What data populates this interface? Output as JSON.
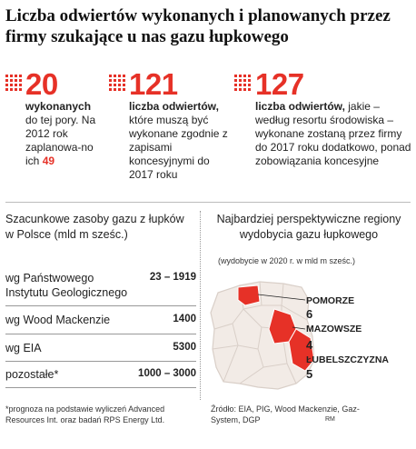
{
  "title": "Liczba odwiertów wykonanych i planowanych przez firmy szukające u nas gazu łupkowego",
  "stats": [
    {
      "number": "20",
      "bold": "wykonanych",
      "text": "do tej pory. Na 2012 rok zaplanowa-no ich",
      "extra": "49"
    },
    {
      "number": "121",
      "bold": "liczba odwiertów,",
      "text": "które muszą być wykonane zgodnie z zapisami koncesyjnymi do 2017 roku",
      "extra": ""
    },
    {
      "number": "127",
      "bold": "liczba odwiertów,",
      "text": "jakie – według resortu środowiska – wykonane zostaną przez firmy do 2017 roku dodatkowo, ponad zobowiązania koncesyjne",
      "extra": ""
    }
  ],
  "chart_data": [
    {
      "type": "table",
      "title": "Szacunkowe zasoby gazu z łupków w Polsce (mld m sześc.)",
      "rows": [
        {
          "label": "wg Państwowego Instytutu Geologicznego",
          "value": "23 – 1919"
        },
        {
          "label": "wg Wood Mackenzie",
          "value": "1400"
        },
        {
          "label": "wg EIA",
          "value": "5300"
        },
        {
          "label": "pozostałe*",
          "value": "1000 – 3000"
        }
      ]
    },
    {
      "type": "bar",
      "title": "Najbardziej perspektywiczne regiony wydobycia gazu łupkowego",
      "subtitle": "(wydobycie w 2020 r. w mld m sześc.)",
      "categories": [
        "POMORZE",
        "MAZOWSZE",
        "LUBELSZCZYZNA"
      ],
      "values": [
        6,
        4,
        5
      ]
    }
  ],
  "footnote": "*prognoza na podstawie wyliczeń Advanced Resources Int. oraz badań RPS Energy Ltd.",
  "source": "Źródło: EIA, PIG, Wood Mackenzie, Gaz-System, DGP",
  "author": "RM",
  "colors": {
    "accent": "#e63127",
    "map_fill": "#f2ebe6",
    "map_line": "#d9cfc8"
  }
}
